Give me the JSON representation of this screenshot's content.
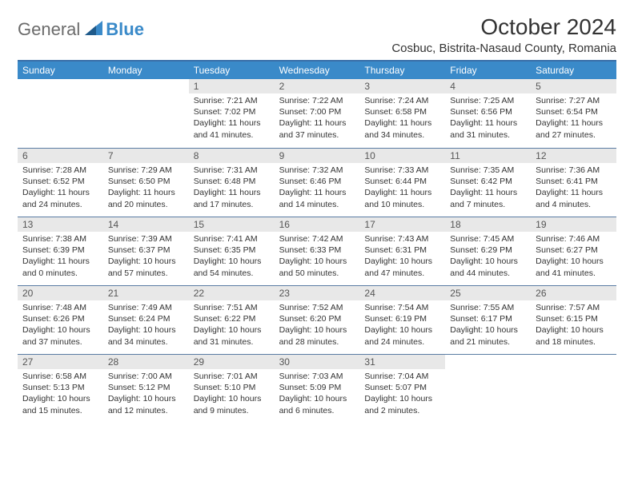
{
  "logo": {
    "part1": "General",
    "part2": "Blue"
  },
  "title": "October 2024",
  "subtitle": "Cosbuc, Bistrita-Nasaud County, Romania",
  "colors": {
    "header_bg": "#3a8ac9",
    "border": "#5a7ca3",
    "daynum_bg": "#e8e8e8",
    "text": "#333333"
  },
  "day_names": [
    "Sunday",
    "Monday",
    "Tuesday",
    "Wednesday",
    "Thursday",
    "Friday",
    "Saturday"
  ],
  "weeks": [
    [
      null,
      null,
      {
        "n": "1",
        "sr": "7:21 AM",
        "ss": "7:02 PM",
        "dl": "11 hours and 41 minutes."
      },
      {
        "n": "2",
        "sr": "7:22 AM",
        "ss": "7:00 PM",
        "dl": "11 hours and 37 minutes."
      },
      {
        "n": "3",
        "sr": "7:24 AM",
        "ss": "6:58 PM",
        "dl": "11 hours and 34 minutes."
      },
      {
        "n": "4",
        "sr": "7:25 AM",
        "ss": "6:56 PM",
        "dl": "11 hours and 31 minutes."
      },
      {
        "n": "5",
        "sr": "7:27 AM",
        "ss": "6:54 PM",
        "dl": "11 hours and 27 minutes."
      }
    ],
    [
      {
        "n": "6",
        "sr": "7:28 AM",
        "ss": "6:52 PM",
        "dl": "11 hours and 24 minutes."
      },
      {
        "n": "7",
        "sr": "7:29 AM",
        "ss": "6:50 PM",
        "dl": "11 hours and 20 minutes."
      },
      {
        "n": "8",
        "sr": "7:31 AM",
        "ss": "6:48 PM",
        "dl": "11 hours and 17 minutes."
      },
      {
        "n": "9",
        "sr": "7:32 AM",
        "ss": "6:46 PM",
        "dl": "11 hours and 14 minutes."
      },
      {
        "n": "10",
        "sr": "7:33 AM",
        "ss": "6:44 PM",
        "dl": "11 hours and 10 minutes."
      },
      {
        "n": "11",
        "sr": "7:35 AM",
        "ss": "6:42 PM",
        "dl": "11 hours and 7 minutes."
      },
      {
        "n": "12",
        "sr": "7:36 AM",
        "ss": "6:41 PM",
        "dl": "11 hours and 4 minutes."
      }
    ],
    [
      {
        "n": "13",
        "sr": "7:38 AM",
        "ss": "6:39 PM",
        "dl": "11 hours and 0 minutes."
      },
      {
        "n": "14",
        "sr": "7:39 AM",
        "ss": "6:37 PM",
        "dl": "10 hours and 57 minutes."
      },
      {
        "n": "15",
        "sr": "7:41 AM",
        "ss": "6:35 PM",
        "dl": "10 hours and 54 minutes."
      },
      {
        "n": "16",
        "sr": "7:42 AM",
        "ss": "6:33 PM",
        "dl": "10 hours and 50 minutes."
      },
      {
        "n": "17",
        "sr": "7:43 AM",
        "ss": "6:31 PM",
        "dl": "10 hours and 47 minutes."
      },
      {
        "n": "18",
        "sr": "7:45 AM",
        "ss": "6:29 PM",
        "dl": "10 hours and 44 minutes."
      },
      {
        "n": "19",
        "sr": "7:46 AM",
        "ss": "6:27 PM",
        "dl": "10 hours and 41 minutes."
      }
    ],
    [
      {
        "n": "20",
        "sr": "7:48 AM",
        "ss": "6:26 PM",
        "dl": "10 hours and 37 minutes."
      },
      {
        "n": "21",
        "sr": "7:49 AM",
        "ss": "6:24 PM",
        "dl": "10 hours and 34 minutes."
      },
      {
        "n": "22",
        "sr": "7:51 AM",
        "ss": "6:22 PM",
        "dl": "10 hours and 31 minutes."
      },
      {
        "n": "23",
        "sr": "7:52 AM",
        "ss": "6:20 PM",
        "dl": "10 hours and 28 minutes."
      },
      {
        "n": "24",
        "sr": "7:54 AM",
        "ss": "6:19 PM",
        "dl": "10 hours and 24 minutes."
      },
      {
        "n": "25",
        "sr": "7:55 AM",
        "ss": "6:17 PM",
        "dl": "10 hours and 21 minutes."
      },
      {
        "n": "26",
        "sr": "7:57 AM",
        "ss": "6:15 PM",
        "dl": "10 hours and 18 minutes."
      }
    ],
    [
      {
        "n": "27",
        "sr": "6:58 AM",
        "ss": "5:13 PM",
        "dl": "10 hours and 15 minutes."
      },
      {
        "n": "28",
        "sr": "7:00 AM",
        "ss": "5:12 PM",
        "dl": "10 hours and 12 minutes."
      },
      {
        "n": "29",
        "sr": "7:01 AM",
        "ss": "5:10 PM",
        "dl": "10 hours and 9 minutes."
      },
      {
        "n": "30",
        "sr": "7:03 AM",
        "ss": "5:09 PM",
        "dl": "10 hours and 6 minutes."
      },
      {
        "n": "31",
        "sr": "7:04 AM",
        "ss": "5:07 PM",
        "dl": "10 hours and 2 minutes."
      },
      null,
      null
    ]
  ]
}
